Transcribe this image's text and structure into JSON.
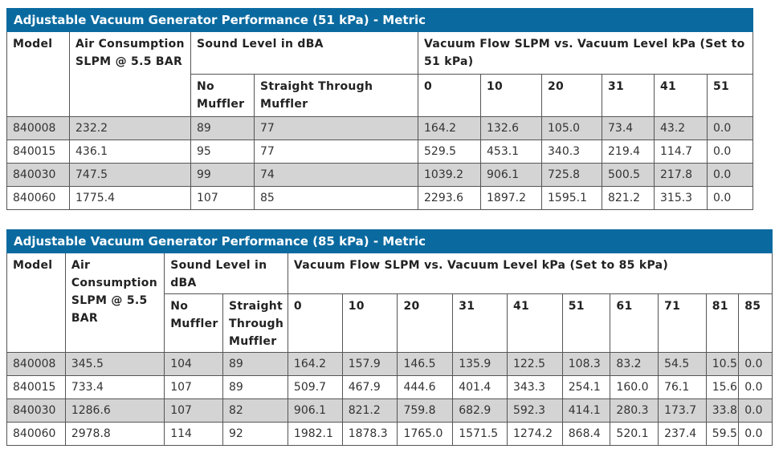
{
  "tables": [
    {
      "title": "Adjustable Vacuum Generator Performance (51 kPa) - Metric",
      "headers": {
        "model": "Model",
        "air": "Air Consumption SLPM @ 5.5 BAR",
        "sound": "Sound Level in dBA",
        "vacuum": "Vacuum Flow SLPM vs. Vacuum Level kPa (Set to 51 kPa)",
        "no_muffler": "No Muffler",
        "straight": "Straight Through Muffler",
        "levels": [
          "0",
          "10",
          "20",
          "31",
          "41",
          "51"
        ]
      },
      "rows": [
        {
          "model": "840008",
          "air": "232.2",
          "no": "89",
          "straight": "77",
          "flows": [
            "164.2",
            "132.6",
            "105.0",
            "73.4",
            "43.2",
            "0.0"
          ]
        },
        {
          "model": "840015",
          "air": "436.1",
          "no": "95",
          "straight": "77",
          "flows": [
            "529.5",
            "453.1",
            "340.3",
            "219.4",
            "114.7",
            "0.0"
          ]
        },
        {
          "model": "840030",
          "air": "747.5",
          "no": "99",
          "straight": "74",
          "flows": [
            "1039.2",
            "906.1",
            "725.8",
            "500.5",
            "217.8",
            "0.0"
          ]
        },
        {
          "model": "840060",
          "air": "1775.4",
          "no": "107",
          "straight": "85",
          "flows": [
            "2293.6",
            "1897.2",
            "1595.1",
            "821.2",
            "315.3",
            "0.0"
          ]
        }
      ]
    },
    {
      "title": "Adjustable Vacuum Generator Performance (85 kPa) - Metric",
      "headers": {
        "model": "Model",
        "air": "Air Consumption SLPM @ 5.5 BAR",
        "sound": "Sound Level in dBA",
        "vacuum": "Vacuum Flow SLPM vs. Vacuum Level kPa (Set to 85 kPa)",
        "no_muffler": "No Muffler",
        "straight": "Straight Through Muffler",
        "levels": [
          "0",
          "10",
          "20",
          "31",
          "41",
          "51",
          "61",
          "71",
          "81",
          "85"
        ]
      },
      "rows": [
        {
          "model": "840008",
          "air": "345.5",
          "no": "104",
          "straight": "89",
          "flows": [
            "164.2",
            "157.9",
            "146.5",
            "135.9",
            "122.5",
            "108.3",
            "83.2",
            "54.5",
            "10.5",
            "0.0"
          ]
        },
        {
          "model": "840015",
          "air": "733.4",
          "no": "107",
          "straight": "89",
          "flows": [
            "509.7",
            "467.9",
            "444.6",
            "401.4",
            "343.3",
            "254.1",
            "160.0",
            "76.1",
            "15.6",
            "0.0"
          ]
        },
        {
          "model": "840030",
          "air": "1286.6",
          "no": "107",
          "straight": "82",
          "flows": [
            "906.1",
            "821.2",
            "759.8",
            "682.9",
            "592.3",
            "414.1",
            "280.3",
            "173.7",
            "33.8",
            "0.0"
          ]
        },
        {
          "model": "840060",
          "air": "2978.8",
          "no": "114",
          "straight": "92",
          "flows": [
            "1982.1",
            "1878.3",
            "1765.0",
            "1571.5",
            "1274.2",
            "868.4",
            "520.1",
            "237.4",
            "59.5",
            "0.0"
          ]
        }
      ]
    }
  ],
  "colors": {
    "header": "#0a6aa0",
    "shade": "#d4d4d4"
  }
}
